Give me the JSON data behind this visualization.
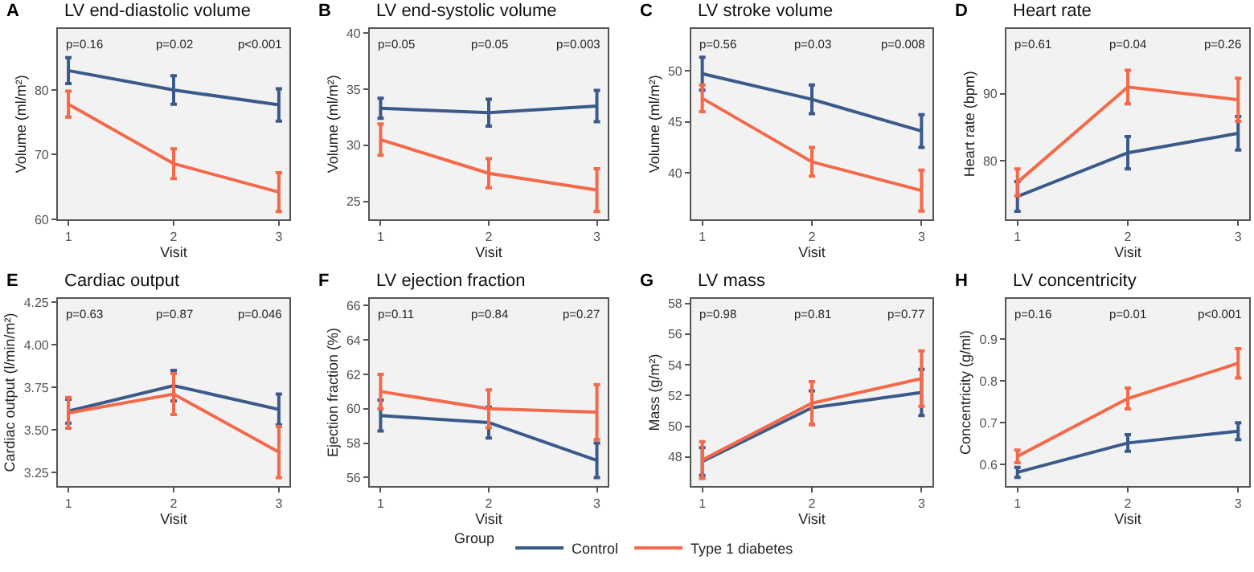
{
  "chart_data": [
    {
      "type": "line",
      "title": "LV end-diastolic volume",
      "xlabel": "Visit",
      "ylabel": "Volume (ml/m²)",
      "annotations": [
        "A",
        "p=0.16",
        "p=0.02",
        "p<0.001"
      ],
      "x": [
        1,
        2,
        3
      ],
      "xlim": [
        0.9,
        3.1
      ],
      "xticks": [
        1,
        2,
        3
      ],
      "ylim": [
        60,
        89.5
      ],
      "yticks": [
        60,
        70,
        80
      ],
      "grid": false,
      "legend": "bottom",
      "legend_title": "Group",
      "marker": "none",
      "line_style": "solid",
      "series": [
        {
          "name": "Control",
          "color": "#3b5a8a",
          "values": [
            83,
            80,
            77.7
          ],
          "errors": [
            2,
            2.2,
            2.5
          ]
        },
        {
          "name": "Type 1 diabetes",
          "color": "#f4694a",
          "values": [
            77.8,
            68.6,
            64.2
          ],
          "errors": [
            2,
            2.3,
            3
          ]
        }
      ]
    },
    {
      "type": "line",
      "title": "LV end-systolic volume",
      "xlabel": "Visit",
      "ylabel": "Volume (ml/m²)",
      "annotations": [
        "B",
        "p=0.05",
        "p=0.05",
        "p=0.003"
      ],
      "x": [
        1,
        2,
        3
      ],
      "xlim": [
        0.9,
        3.1
      ],
      "xticks": [
        1,
        2,
        3
      ],
      "ylim": [
        23.4,
        40.4
      ],
      "yticks": [
        25,
        30,
        35,
        40
      ],
      "grid": false,
      "marker": "none",
      "line_style": "solid",
      "series": [
        {
          "color": "#3b5a8a",
          "values": [
            33.3,
            32.9,
            33.5
          ],
          "errors": [
            0.9,
            1.2,
            1.4
          ]
        },
        {
          "color": "#f4694a",
          "values": [
            30.5,
            27.5,
            26
          ],
          "errors": [
            1.4,
            1.3,
            1.9
          ]
        }
      ]
    },
    {
      "type": "line",
      "title": "LV stroke volume",
      "xlabel": "Visit",
      "ylabel": "Volume (ml/m²)",
      "annotations": [
        "C",
        "p=0.56",
        "p=0.03",
        "p=0.008"
      ],
      "x": [
        1,
        2,
        3
      ],
      "xlim": [
        0.9,
        3.1
      ],
      "xticks": [
        1,
        2,
        3
      ],
      "ylim": [
        35.5,
        54.1
      ],
      "yticks": [
        40,
        45,
        50
      ],
      "grid": false,
      "marker": "none",
      "line_style": "solid",
      "series": [
        {
          "color": "#3b5a8a",
          "values": [
            49.7,
            47.2,
            44.1
          ],
          "errors": [
            1.6,
            1.4,
            1.6
          ]
        },
        {
          "color": "#f4694a",
          "values": [
            47.3,
            41.1,
            38.3
          ],
          "errors": [
            1.3,
            1.4,
            2
          ]
        }
      ]
    },
    {
      "type": "line",
      "title": "Heart rate",
      "xlabel": "Visit",
      "ylabel": "Heart rate (bpm)",
      "annotations": [
        "D",
        "p=0.61",
        "p=0.04",
        "p=0.26"
      ],
      "x": [
        1,
        2,
        3
      ],
      "xlim": [
        0.9,
        3.1
      ],
      "xticks": [
        1,
        2,
        3
      ],
      "ylim": [
        71.3,
        99.7
      ],
      "yticks": [
        80,
        90
      ],
      "grid": false,
      "marker": "none",
      "line_style": "solid",
      "series": [
        {
          "color": "#3b5a8a",
          "values": [
            74.7,
            81.2,
            84.1
          ],
          "errors": [
            2.2,
            2.4,
            2.5
          ]
        },
        {
          "color": "#f4694a",
          "values": [
            76.8,
            91,
            89.1
          ],
          "errors": [
            2,
            2.5,
            3.2
          ]
        }
      ]
    },
    {
      "type": "line",
      "title": "Cardiac output",
      "xlabel": "Visit",
      "ylabel": "Cardiac output (l/min/m²)",
      "annotations": [
        "E",
        "p=0.63",
        "p=0.87",
        "p=0.046"
      ],
      "x": [
        1,
        2,
        3
      ],
      "xlim": [
        0.9,
        3.1
      ],
      "xticks": [
        1,
        2,
        3
      ],
      "ylim": [
        3.17,
        4.27
      ],
      "yticks": [
        {
          "value": 3.25,
          "label": "3.25"
        },
        {
          "value": 3.5,
          "label": "3.50"
        },
        {
          "value": 3.75,
          "label": "3.75"
        },
        {
          "value": 4,
          "label": "4.00"
        },
        {
          "value": 4.25,
          "label": "4.25"
        }
      ],
      "grid": false,
      "marker": "none",
      "line_style": "solid",
      "series": [
        {
          "color": "#3b5a8a",
          "values": [
            3.61,
            3.76,
            3.62
          ],
          "errors": [
            0.07,
            0.09,
            0.09
          ]
        },
        {
          "color": "#f4694a",
          "values": [
            3.6,
            3.71,
            3.37
          ],
          "errors": [
            0.09,
            0.12,
            0.15
          ]
        }
      ]
    },
    {
      "type": "line",
      "title": "LV ejection fraction",
      "xlabel": "Visit",
      "ylabel": "Ejection fraction (%)",
      "annotations": [
        "F",
        "p=0.11",
        "p=0.84",
        "p=0.27"
      ],
      "x": [
        1,
        2,
        3
      ],
      "xlim": [
        0.9,
        3.1
      ],
      "xticks": [
        1,
        2,
        3
      ],
      "ylim": [
        55.5,
        66.4
      ],
      "yticks": [
        56,
        58,
        60,
        62,
        64,
        66
      ],
      "grid": false,
      "marker": "none",
      "line_style": "solid",
      "series": [
        {
          "color": "#3b5a8a",
          "values": [
            59.6,
            59.2,
            57
          ],
          "errors": [
            0.9,
            0.9,
            1
          ]
        },
        {
          "color": "#f4694a",
          "values": [
            61,
            60,
            59.8
          ],
          "errors": [
            1,
            1.1,
            1.6
          ]
        }
      ]
    },
    {
      "type": "line",
      "title": "LV mass",
      "xlabel": "Visit",
      "ylabel": "Mass (g/m²)",
      "annotations": [
        "G",
        "p=0.98",
        "p=0.81",
        "p=0.77"
      ],
      "x": [
        1,
        2,
        3
      ],
      "xlim": [
        0.9,
        3.1
      ],
      "xticks": [
        1,
        2,
        3
      ],
      "ylim": [
        46.1,
        58.3
      ],
      "yticks": [
        48,
        50,
        52,
        54,
        56,
        58
      ],
      "grid": false,
      "marker": "none",
      "line_style": "solid",
      "series": [
        {
          "color": "#3b5a8a",
          "values": [
            47.7,
            51.2,
            52.2
          ],
          "errors": [
            0.9,
            1.1,
            1.5
          ]
        },
        {
          "color": "#f4694a",
          "values": [
            47.8,
            51.5,
            53.1
          ],
          "errors": [
            1.2,
            1.4,
            1.8
          ]
        }
      ]
    },
    {
      "type": "line",
      "title": "LV concentricity",
      "xlabel": "Visit",
      "ylabel": "Concentricity (g/ml)",
      "annotations": [
        "H",
        "p=0.16",
        "p=0.01",
        "p<0.001"
      ],
      "x": [
        1,
        2,
        3
      ],
      "xlim": [
        0.9,
        3.1
      ],
      "xticks": [
        1,
        2,
        3
      ],
      "ylim": [
        0.549,
        0.996
      ],
      "yticks": [
        0.6,
        0.7,
        0.8,
        0.9
      ],
      "grid": false,
      "marker": "none",
      "line_style": "solid",
      "series": [
        {
          "color": "#3b5a8a",
          "values": [
            0.582,
            0.652,
            0.68
          ],
          "errors": [
            0.012,
            0.02,
            0.02
          ]
        },
        {
          "color": "#f4694a",
          "values": [
            0.62,
            0.758,
            0.842
          ],
          "errors": [
            0.015,
            0.025,
            0.035
          ]
        }
      ]
    }
  ]
}
